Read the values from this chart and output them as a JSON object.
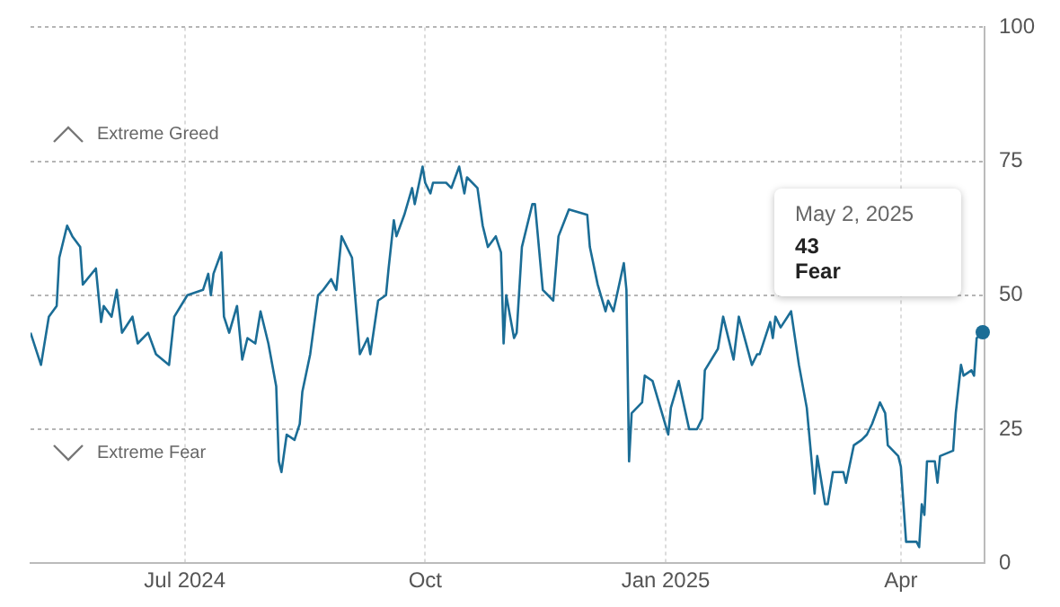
{
  "chart_data": {
    "type": "line",
    "xlim": [
      "2024-05-03",
      "2025-05-03"
    ],
    "ylim": [
      0,
      100
    ],
    "yticks": [
      0,
      25,
      50,
      75,
      100
    ],
    "xticks": [
      {
        "value": "2024-07-01",
        "label": "Jul 2024"
      },
      {
        "value": "2024-10-01",
        "label": "Oct"
      },
      {
        "value": "2025-01-01",
        "label": "Jan 2025"
      },
      {
        "value": "2025-04-01",
        "label": "Apr"
      }
    ],
    "grid": true,
    "marker": "none",
    "line_style": "solid",
    "annotations": [
      "Extreme Greed",
      "Extreme Fear",
      "May 2, 2025",
      "43",
      "Fear"
    ],
    "x": [
      "2024-05-03",
      "2024-05-07",
      "2024-05-10",
      "2024-05-13",
      "2024-05-14",
      "2024-05-17",
      "2024-05-19",
      "2024-05-22",
      "2024-05-23",
      "2024-05-28",
      "2024-05-30",
      "2024-05-31",
      "2024-06-03",
      "2024-06-05",
      "2024-06-07",
      "2024-06-11",
      "2024-06-13",
      "2024-06-17",
      "2024-06-20",
      "2024-06-25",
      "2024-06-27",
      "2024-07-02",
      "2024-07-08",
      "2024-07-10",
      "2024-07-11",
      "2024-07-12",
      "2024-07-15",
      "2024-07-16",
      "2024-07-18",
      "2024-07-21",
      "2024-07-23",
      "2024-07-25",
      "2024-07-28",
      "2024-07-30",
      "2024-08-02",
      "2024-08-05",
      "2024-08-06",
      "2024-08-07",
      "2024-08-09",
      "2024-08-12",
      "2024-08-14",
      "2024-08-15",
      "2024-08-18",
      "2024-08-21",
      "2024-08-23",
      "2024-08-26",
      "2024-08-28",
      "2024-08-30",
      "2024-09-03",
      "2024-09-06",
      "2024-09-09",
      "2024-09-10",
      "2024-09-13",
      "2024-09-16",
      "2024-09-17",
      "2024-09-19",
      "2024-09-20",
      "2024-09-23",
      "2024-09-26",
      "2024-09-27",
      "2024-09-30",
      "2024-10-01",
      "2024-10-03",
      "2024-10-04",
      "2024-10-09",
      "2024-10-11",
      "2024-10-14",
      "2024-10-16",
      "2024-10-17",
      "2024-10-21",
      "2024-10-23",
      "2024-10-25",
      "2024-10-28",
      "2024-10-30",
      "2024-10-31",
      "2024-11-01",
      "2024-11-04",
      "2024-11-05",
      "2024-11-07",
      "2024-11-11",
      "2024-11-12",
      "2024-11-15",
      "2024-11-19",
      "2024-11-21",
      "2024-11-25",
      "2024-12-02",
      "2024-12-03",
      "2024-12-06",
      "2024-12-09",
      "2024-12-10",
      "2024-12-12",
      "2024-12-16",
      "2024-12-17",
      "2024-12-18",
      "2024-12-19",
      "2024-12-23",
      "2024-12-24",
      "2024-12-27",
      "2024-12-30",
      "2025-01-02",
      "2025-01-03",
      "2025-01-06",
      "2025-01-10",
      "2025-01-13",
      "2025-01-15",
      "2025-01-16",
      "2025-01-21",
      "2025-01-23",
      "2025-01-27",
      "2025-01-29",
      "2025-02-03",
      "2025-02-05",
      "2025-02-06",
      "2025-02-10",
      "2025-02-11",
      "2025-02-12",
      "2025-02-14",
      "2025-02-18",
      "2025-02-21",
      "2025-02-24",
      "2025-02-27",
      "2025-02-28",
      "2025-03-03",
      "2025-03-04",
      "2025-03-06",
      "2025-03-10",
      "2025-03-11",
      "2025-03-14",
      "2025-03-17",
      "2025-03-19",
      "2025-03-21",
      "2025-03-24",
      "2025-03-26",
      "2025-03-27",
      "2025-03-31",
      "2025-04-01",
      "2025-04-03",
      "2025-04-04",
      "2025-04-07",
      "2025-04-08",
      "2025-04-09",
      "2025-04-10",
      "2025-04-11",
      "2025-04-14",
      "2025-04-15",
      "2025-04-16",
      "2025-04-21",
      "2025-04-22",
      "2025-04-24",
      "2025-04-25",
      "2025-04-28",
      "2025-04-29",
      "2025-04-30",
      "2025-05-02"
    ],
    "series": [
      {
        "color": "#1b6d96",
        "values": [
          43,
          37,
          46,
          48,
          57,
          63,
          61,
          59,
          52,
          55,
          45,
          48,
          46,
          51,
          43,
          46,
          41,
          43,
          39,
          37,
          46,
          50,
          51,
          54,
          50,
          54,
          58,
          46,
          43,
          48,
          38,
          42,
          41,
          47,
          41,
          33,
          19,
          17,
          24,
          23,
          26,
          32,
          39,
          50,
          51,
          53,
          51,
          61,
          57,
          39,
          42,
          39,
          49,
          50,
          55,
          64,
          61,
          65,
          70,
          67,
          74,
          71,
          69,
          71,
          71,
          70,
          74,
          69,
          72,
          70,
          63,
          59,
          61,
          58,
          41,
          50,
          42,
          43,
          59,
          67,
          67,
          51,
          49,
          61,
          66,
          65,
          59,
          52,
          47,
          49,
          47,
          56,
          51,
          19,
          28,
          30,
          35,
          34,
          29,
          24,
          29,
          34,
          25,
          25,
          27,
          36,
          40,
          46,
          38,
          46,
          37,
          39,
          39,
          45,
          42,
          46,
          44,
          47,
          37,
          29,
          13,
          20,
          11,
          11,
          17,
          17,
          15,
          22,
          23,
          24,
          26,
          30,
          28,
          22,
          20,
          18,
          4,
          4,
          4,
          3,
          11,
          9,
          19,
          19,
          15,
          20,
          21,
          28,
          37,
          35,
          36,
          35,
          42,
          43
        ]
      }
    ]
  }
}
